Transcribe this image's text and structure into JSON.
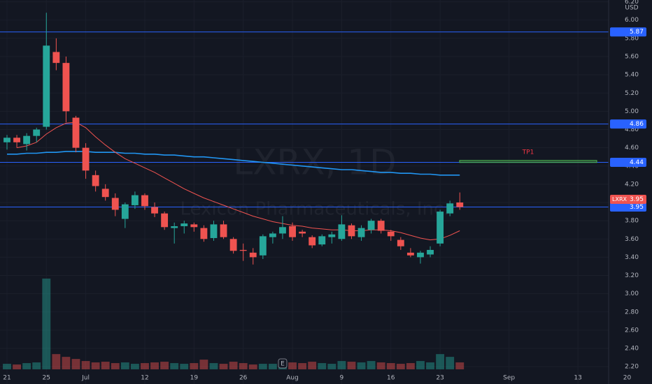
{
  "chart_data": {
    "type": "candlestick",
    "watermark": "LXRX, 1D",
    "watermark_subtitle": "Lexicon Pharmaceuticals, Inc.",
    "currency": "USD",
    "x": [
      0,
      1,
      2,
      3,
      4,
      5,
      6,
      7,
      8,
      9,
      10,
      11,
      12,
      13,
      14,
      15,
      16,
      17,
      18,
      19,
      20,
      21,
      22,
      23,
      24,
      25,
      26,
      27,
      28,
      29,
      30,
      31,
      32,
      33,
      34,
      35,
      36,
      37,
      38,
      39,
      40,
      41,
      42,
      43,
      44,
      45,
      46
    ],
    "open": [
      4.66,
      4.71,
      4.64,
      4.73,
      4.83,
      5.65,
      5.53,
      4.93,
      4.6,
      4.3,
      4.15,
      4.05,
      3.82,
      3.97,
      4.08,
      3.95,
      3.88,
      3.72,
      3.74,
      3.76,
      3.72,
      3.61,
      3.76,
      3.6,
      3.48,
      3.45,
      3.42,
      3.62,
      3.66,
      3.74,
      3.68,
      3.62,
      3.54,
      3.62,
      3.6,
      3.75,
      3.62,
      3.7,
      3.8,
      3.68,
      3.59,
      3.45,
      3.4,
      3.43,
      3.55,
      3.88,
      4.0
    ],
    "high": [
      4.74,
      4.74,
      4.76,
      4.82,
      6.08,
      5.8,
      5.6,
      4.95,
      4.65,
      4.35,
      4.2,
      4.1,
      4.0,
      4.12,
      4.1,
      4.0,
      3.9,
      3.78,
      3.8,
      3.78,
      3.75,
      3.8,
      3.8,
      3.62,
      3.55,
      3.5,
      3.65,
      3.68,
      3.85,
      3.78,
      3.7,
      3.64,
      3.65,
      3.68,
      3.86,
      3.77,
      3.75,
      3.82,
      3.82,
      3.7,
      3.62,
      3.5,
      3.47,
      3.52,
      3.92,
      4.02,
      4.11
    ],
    "low": [
      4.58,
      4.6,
      4.57,
      4.66,
      4.8,
      5.45,
      4.88,
      4.55,
      4.26,
      4.12,
      4.02,
      3.85,
      3.72,
      3.93,
      3.92,
      3.84,
      3.7,
      3.55,
      3.66,
      3.68,
      3.57,
      3.58,
      3.6,
      3.44,
      3.36,
      3.32,
      3.38,
      3.55,
      3.6,
      3.58,
      3.62,
      3.5,
      3.52,
      3.55,
      3.58,
      3.6,
      3.58,
      3.66,
      3.66,
      3.58,
      3.48,
      3.4,
      3.33,
      3.4,
      3.52,
      3.85,
      3.92
    ],
    "close": [
      4.71,
      4.66,
      4.73,
      4.8,
      5.72,
      5.53,
      5.0,
      4.6,
      4.35,
      4.18,
      4.06,
      3.92,
      3.98,
      4.08,
      3.96,
      3.88,
      3.73,
      3.74,
      3.77,
      3.73,
      3.6,
      3.76,
      3.62,
      3.47,
      3.47,
      3.4,
      3.63,
      3.66,
      3.73,
      3.62,
      3.66,
      3.53,
      3.63,
      3.65,
      3.76,
      3.63,
      3.72,
      3.8,
      3.69,
      3.63,
      3.52,
      3.42,
      3.45,
      3.48,
      3.9,
      3.99,
      3.95
    ],
    "volume": [
      8,
      7,
      9,
      10,
      131,
      22,
      18,
      15,
      12,
      10,
      11,
      9,
      10,
      8,
      9,
      10,
      11,
      9,
      8,
      9,
      14,
      9,
      8,
      11,
      9,
      7,
      8,
      8,
      11,
      10,
      9,
      11,
      9,
      8,
      12,
      11,
      10,
      12,
      10,
      9,
      8,
      9,
      12,
      10,
      22,
      18,
      10
    ],
    "up_color": "#26a69a",
    "down_color": "#ef5350",
    "lines": [
      {
        "color": "#2196f3",
        "values": [
          4.53,
          4.53,
          4.54,
          4.54,
          4.55,
          4.55,
          4.56,
          4.56,
          4.56,
          4.55,
          4.55,
          4.55,
          4.54,
          4.54,
          4.53,
          4.53,
          4.52,
          4.52,
          4.51,
          4.5,
          4.5,
          4.49,
          4.48,
          4.47,
          4.46,
          4.45,
          4.44,
          4.43,
          4.42,
          4.41,
          4.4,
          4.39,
          4.38,
          4.37,
          4.36,
          4.36,
          4.35,
          4.34,
          4.33,
          4.33,
          4.32,
          4.32,
          4.31,
          4.31,
          4.3,
          4.3,
          4.3
        ]
      },
      {
        "color": "#f05350",
        "values": [
          null,
          4.6,
          4.62,
          4.66,
          4.75,
          4.82,
          4.87,
          4.88,
          4.82,
          4.72,
          4.63,
          4.55,
          4.48,
          4.43,
          4.38,
          4.33,
          4.27,
          4.21,
          4.15,
          4.1,
          4.05,
          4.01,
          3.97,
          3.93,
          3.89,
          3.85,
          3.82,
          3.79,
          3.77,
          3.75,
          3.74,
          3.72,
          3.71,
          3.7,
          3.7,
          3.69,
          3.69,
          3.7,
          3.7,
          3.69,
          3.67,
          3.64,
          3.61,
          3.59,
          3.6,
          3.64,
          3.69
        ]
      }
    ],
    "levels": [
      {
        "value": 5.87,
        "label": "5.87"
      },
      {
        "value": 4.86,
        "label": "4.86"
      },
      {
        "value": 4.44,
        "label": "4.44"
      },
      {
        "value": 3.95,
        "label": "3.95"
      }
    ],
    "level_color": "#2962ff",
    "last_price": {
      "symbol": "LXRX",
      "value": 3.95,
      "label": "3.95"
    },
    "target": {
      "text": "TP1",
      "value": 4.45
    },
    "earnings_marker": "E",
    "xlim": [
      -0.71,
      61.12
    ],
    "ylim": [
      2.01,
      6.22
    ],
    "xticks": [
      {
        "value": 0,
        "label": "21"
      },
      {
        "value": 4,
        "label": "25"
      },
      {
        "value": 8,
        "label": "Jul"
      },
      {
        "value": 14,
        "label": "12"
      },
      {
        "value": 19,
        "label": "19"
      },
      {
        "value": 24,
        "label": "26"
      },
      {
        "value": 29,
        "label": "Aug"
      },
      {
        "value": 34,
        "label": "9"
      },
      {
        "value": 39,
        "label": "16"
      },
      {
        "value": 44,
        "label": "23"
      },
      {
        "value": 51,
        "label": "Sep"
      },
      {
        "value": 58,
        "label": "13"
      },
      {
        "value": 63,
        "label": "20"
      }
    ],
    "yticks": [
      {
        "value": 2.2,
        "label": "2.20"
      },
      {
        "value": 2.4,
        "label": "2.40"
      },
      {
        "value": 2.6,
        "label": "2.60"
      },
      {
        "value": 2.8,
        "label": "2.80"
      },
      {
        "value": 3.0,
        "label": "3.00"
      },
      {
        "value": 3.2,
        "label": "3.20"
      },
      {
        "value": 3.4,
        "label": "3.40"
      },
      {
        "value": 3.6,
        "label": "3.60"
      },
      {
        "value": 3.8,
        "label": "3.80"
      },
      {
        "value": 4.0,
        "label": "4.00"
      },
      {
        "value": 4.2,
        "label": "4.20"
      },
      {
        "value": 4.4,
        "label": "4.40"
      },
      {
        "value": 4.6,
        "label": "4.60"
      },
      {
        "value": 4.8,
        "label": "4.80"
      },
      {
        "value": 5.0,
        "label": "5.00"
      },
      {
        "value": 5.2,
        "label": "5.20"
      },
      {
        "value": 5.4,
        "label": "5.40"
      },
      {
        "value": 5.6,
        "label": "5.60"
      },
      {
        "value": 5.8,
        "label": "5.80"
      },
      {
        "value": 6.0,
        "label": "6.00"
      },
      {
        "value": 6.2,
        "label": "6.20"
      }
    ],
    "grid": true
  }
}
